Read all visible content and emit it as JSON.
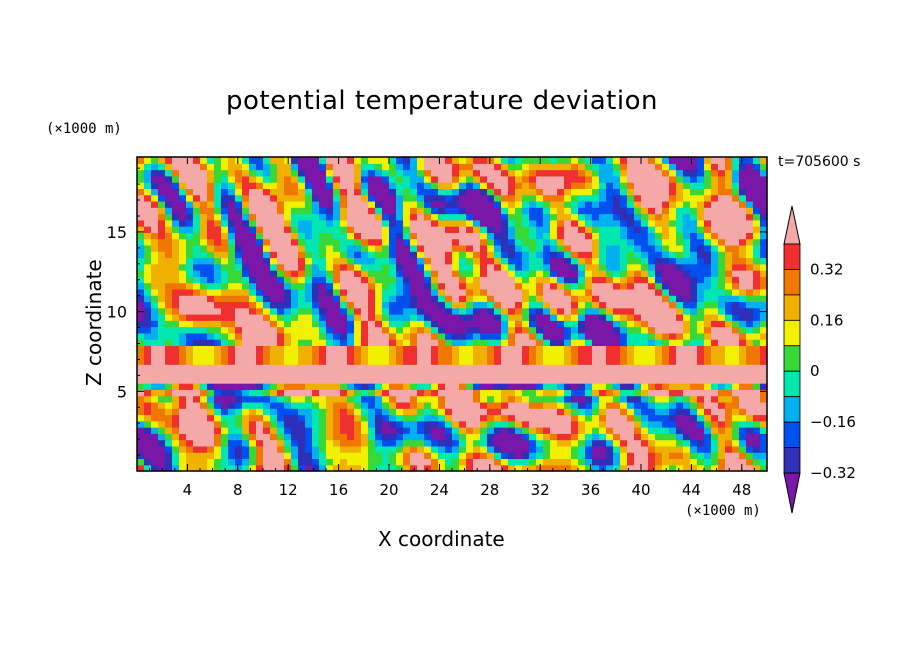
{
  "chart_data": {
    "type": "heatmap",
    "title": "potential temperature deviation",
    "xlabel": "X coordinate",
    "ylabel": "Z coordinate",
    "x_unit_label": "(×1000 m)",
    "y_unit_label": "(×1000 m)",
    "time_label": "t=705600 s",
    "xlim": [
      0,
      50
    ],
    "ylim": [
      0,
      19.7
    ],
    "x_ticks": [
      "4",
      "8",
      "12",
      "16",
      "20",
      "24",
      "28",
      "32",
      "36",
      "40",
      "44",
      "48"
    ],
    "y_ticks": [
      "5",
      "10",
      "15"
    ],
    "colorbar": {
      "labels": [
        "0.32",
        "0.16",
        "0",
        "−0.16",
        "−0.32"
      ],
      "levels": [
        -0.4,
        -0.32,
        -0.24,
        -0.16,
        -0.08,
        0,
        0.08,
        0.16,
        0.24,
        0.32,
        0.4
      ],
      "colors": [
        "#7a16a8",
        "#2f2fb8",
        "#0050f0",
        "#00b0f0",
        "#00e8b0",
        "#38d838",
        "#f0f000",
        "#f0b000",
        "#f07800",
        "#f03030",
        "#f4a8a8"
      ]
    }
  }
}
